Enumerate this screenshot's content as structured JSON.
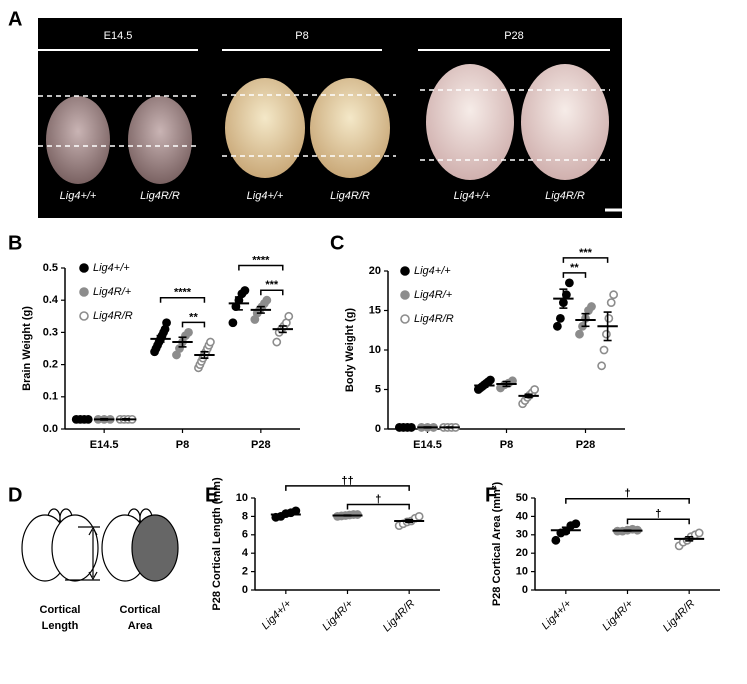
{
  "panel_labels": [
    "A",
    "B",
    "C",
    "D",
    "E",
    "F"
  ],
  "photo_panel": {
    "stages": [
      {
        "name": "E14.5",
        "genotypes": [
          "Lig4+/+",
          "Lig4R/R"
        ]
      },
      {
        "name": "P8",
        "genotypes": [
          "Lig4+/+",
          "Lig4R/R"
        ]
      },
      {
        "name": "P28",
        "genotypes": [
          "Lig4+/+",
          "Lig4R/R"
        ]
      }
    ]
  },
  "schematic": {
    "labels": [
      [
        "Cortical",
        "Length"
      ],
      [
        "Cortical",
        "Area"
      ]
    ]
  },
  "chart_data": [
    {
      "type": "dot",
      "y_label": "Brain Weight (g)",
      "categories": [
        "E14.5",
        "P8",
        "P28"
      ],
      "ylim": [
        0,
        0.5
      ],
      "yticks": [
        {
          "value": 0,
          "label": "0.0"
        },
        0.1,
        0.2,
        0.3,
        0.4,
        0.5
      ],
      "series": [
        {
          "name": "Lig4+/+",
          "color": "#000000",
          "filled": true,
          "values": [
            0.03,
            0.28,
            0.39
          ],
          "errors": [
            0.002,
            0.01,
            0.02
          ],
          "points": [
            [
              0.03,
              0.03,
              0.03,
              0.03
            ],
            [
              0.24,
              0.25,
              0.26,
              0.27,
              0.28,
              0.29,
              0.3,
              0.31,
              0.33
            ],
            [
              0.33,
              0.38,
              0.4,
              0.42,
              0.43
            ]
          ]
        },
        {
          "name": "Lig4R/+",
          "color": "#8c8c8c",
          "filled": true,
          "values": [
            0.03,
            0.27,
            0.37
          ],
          "errors": [
            0.002,
            0.015,
            0.01
          ],
          "points": [
            [
              0.03,
              0.03,
              0.03
            ],
            [
              0.23,
              0.25,
              0.27,
              0.29,
              0.3
            ],
            [
              0.34,
              0.36,
              0.37,
              0.38,
              0.39,
              0.4
            ]
          ]
        },
        {
          "name": "Lig4R/R",
          "color": "#8c8c8c",
          "filled": false,
          "values": [
            0.03,
            0.23,
            0.31
          ],
          "errors": [
            0.002,
            0.01,
            0.01
          ],
          "points": [
            [
              0.03,
              0.03,
              0.03,
              0.03
            ],
            [
              0.19,
              0.2,
              0.21,
              0.22,
              0.23,
              0.24,
              0.25,
              0.26,
              0.27
            ],
            [
              0.27,
              0.3,
              0.31,
              0.32,
              0.33,
              0.35
            ]
          ]
        }
      ],
      "brackets": [
        {
          "category": 1,
          "from": 0,
          "to": 2,
          "label": "****"
        },
        {
          "category": 1,
          "from": 1,
          "to": 2,
          "label": "**"
        },
        {
          "category": 2,
          "from": 0,
          "to": 2,
          "label": "****"
        },
        {
          "category": 2,
          "from": 1,
          "to": 2,
          "label": "***"
        }
      ]
    },
    {
      "type": "dot",
      "y_label": "Body Weight (g)",
      "categories": [
        "E14.5",
        "P8",
        "P28"
      ],
      "ylim": [
        0,
        20
      ],
      "yticks": [
        0,
        5,
        10,
        15,
        20
      ],
      "series": [
        {
          "name": "Lig4+/+",
          "color": "#000000",
          "filled": true,
          "values": [
            0.2,
            5.5,
            16.5
          ],
          "errors": [
            0.05,
            0.2,
            1.2
          ],
          "points": [
            [
              0.2,
              0.2,
              0.2,
              0.2
            ],
            [
              5,
              5.2,
              5.4,
              5.6,
              5.8,
              6,
              6.2
            ],
            [
              13,
              14,
              16,
              17,
              18.5
            ]
          ]
        },
        {
          "name": "Lig4R/+",
          "color": "#8c8c8c",
          "filled": true,
          "values": [
            0.2,
            5.7,
            13.8
          ],
          "errors": [
            0.05,
            0.3,
            0.8
          ],
          "points": [
            [
              0.2,
              0.2,
              0.2
            ],
            [
              5.2,
              5.6,
              5.8,
              6.1
            ],
            [
              12,
              13,
              14,
              15,
              15.5
            ]
          ]
        },
        {
          "name": "Lig4R/R",
          "color": "#8c8c8c",
          "filled": false,
          "values": [
            0.2,
            4.2,
            13
          ],
          "errors": [
            0.05,
            0.2,
            1.8
          ],
          "points": [
            [
              0.2,
              0.2,
              0.2,
              0.2
            ],
            [
              3.2,
              3.6,
              4,
              4.3,
              4.6,
              5
            ],
            [
              8,
              10,
              12,
              14,
              16,
              17
            ]
          ]
        }
      ],
      "brackets": [
        {
          "category": 2,
          "from": 0,
          "to": 2,
          "label": "***"
        },
        {
          "category": 2,
          "from": 0,
          "to": 1,
          "label": "**"
        }
      ]
    },
    {
      "type": "dot",
      "y_label": "P28 Cortical Length (mm)",
      "categories": [
        "Lig4+/+",
        "Lig4R/+",
        "Lig4R/R"
      ],
      "ylim": [
        0,
        10
      ],
      "yticks": [
        0,
        2,
        4,
        6,
        8,
        10
      ],
      "colors": [
        "#000000",
        "#8c8c8c",
        "#8c8c8c"
      ],
      "filled": [
        true,
        true,
        false
      ],
      "values": [
        8.2,
        8.1,
        7.5
      ],
      "errors": [
        0.12,
        0.04,
        0.15
      ],
      "points": [
        [
          7.9,
          8.0,
          8.3,
          8.4,
          8.6
        ],
        [
          8.0,
          8.05,
          8.1,
          8.15,
          8.2,
          8.2
        ],
        [
          7.0,
          7.2,
          7.4,
          7.5,
          7.8,
          8.0
        ]
      ],
      "brackets": [
        {
          "from": 0,
          "to": 2,
          "label": "††"
        },
        {
          "from": 1,
          "to": 2,
          "label": "†"
        }
      ]
    },
    {
      "type": "dot",
      "y_label": "P28 Cortical Area (mm²)",
      "categories": [
        "Lig4+/+",
        "Lig4R/+",
        "Lig4R/R"
      ],
      "ylim": [
        0,
        50
      ],
      "yticks": [
        0,
        10,
        20,
        30,
        40,
        50
      ],
      "colors": [
        "#000000",
        "#8c8c8c",
        "#8c8c8c"
      ],
      "filled": [
        true,
        true,
        false
      ],
      "values": [
        32.5,
        32.3,
        27.8
      ],
      "errors": [
        1.6,
        0.2,
        1.1
      ],
      "points": [
        [
          27,
          31,
          32,
          35,
          36
        ],
        [
          32,
          32,
          32.5,
          33,
          32.5
        ],
        [
          24,
          26,
          27,
          29,
          30,
          31
        ]
      ],
      "brackets": [
        {
          "from": 0,
          "to": 2,
          "label": "†"
        },
        {
          "from": 1,
          "to": 2,
          "label": "†"
        }
      ]
    }
  ]
}
